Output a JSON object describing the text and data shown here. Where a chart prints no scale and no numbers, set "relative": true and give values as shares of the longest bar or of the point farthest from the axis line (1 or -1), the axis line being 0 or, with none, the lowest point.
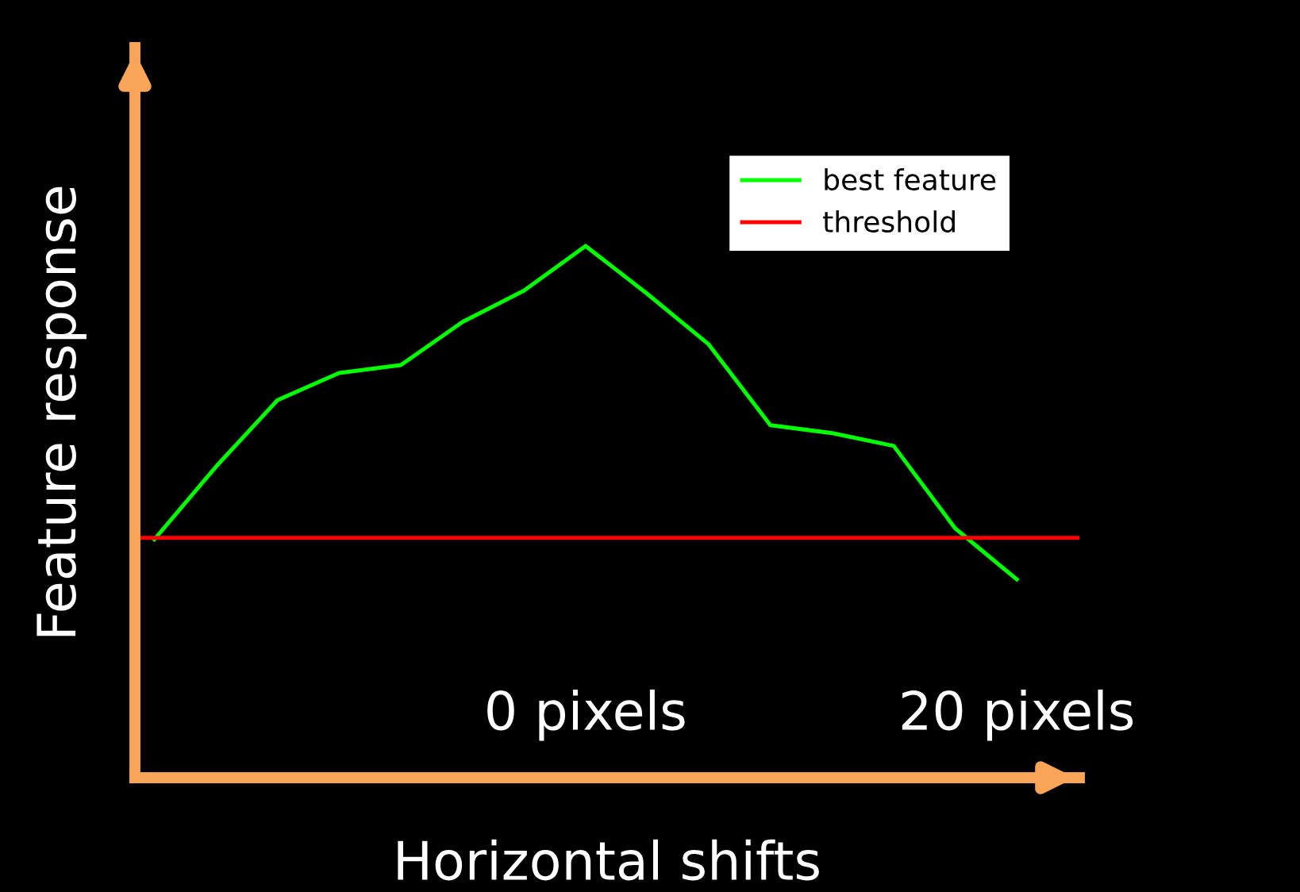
{
  "chart_data": {
    "type": "line",
    "relative": true,
    "xlabel": "Horizontal shifts",
    "ylabel": "Feature response",
    "x": [
      -20,
      -17.14,
      -14.29,
      -11.43,
      -8.57,
      -5.71,
      -2.86,
      0,
      2.86,
      5.71,
      8.57,
      11.43,
      14.29,
      17.14,
      20
    ],
    "xlim": [
      -20.9,
      22.9
    ],
    "xticks": [
      {
        "value": 0,
        "label": "0 pixels"
      },
      {
        "value": 20,
        "label": "20 pixels"
      }
    ],
    "series": [
      {
        "name": "best feature",
        "color": "#00ff00",
        "values": [
          0.448,
          0.585,
          0.71,
          0.761,
          0.776,
          0.857,
          0.916,
          1,
          0.91,
          0.815,
          0.663,
          0.648,
          0.624,
          0.469,
          0.373
        ]
      }
    ],
    "ref_lines": [
      {
        "axis": "y",
        "value": 0.451,
        "label": "threshold",
        "color": "#ff0000"
      }
    ],
    "legend": "top right",
    "grid": false,
    "marker": "none",
    "line_style": "solid"
  }
}
